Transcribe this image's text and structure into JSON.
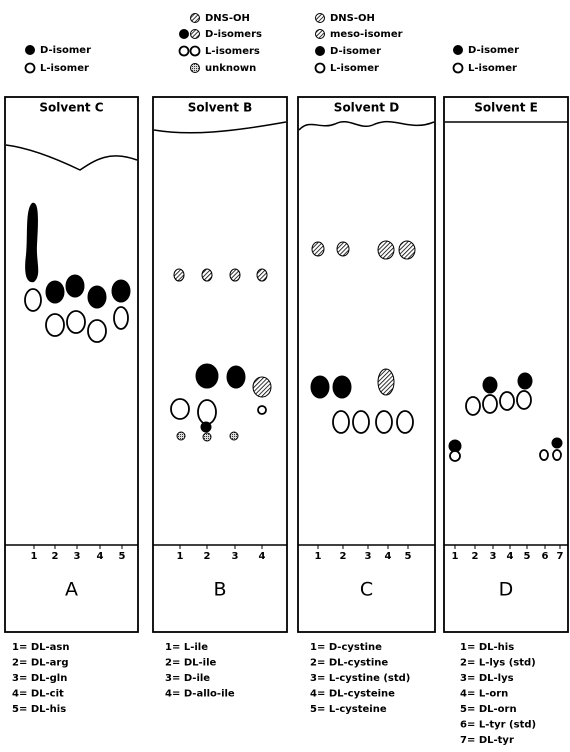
{
  "panels": [
    {
      "legend": [
        "D-isomer",
        "L-isomer"
      ],
      "solvent": "Solvent C",
      "lanes": [
        "1",
        "2",
        "3",
        "4",
        "5"
      ],
      "letter": "A",
      "key": [
        "1= DL-asn",
        "2= DL-arg",
        "3= DL-gln",
        "4= DL-cit",
        "5= DL-his"
      ]
    },
    {
      "legend": [
        "DNS-OH",
        "D-isomers",
        "L-isomers",
        "unknown"
      ],
      "solvent": "Solvent B",
      "lanes": [
        "1",
        "2",
        "3",
        "4"
      ],
      "letter": "B",
      "key": [
        "1= L-ile",
        "2= DL-ile",
        "3= D-ile",
        "4= D-allo-ile"
      ]
    },
    {
      "legend": [
        "DNS-OH",
        "meso-isomer",
        "D-isomer",
        "L-isomer"
      ],
      "solvent": "Solvent D",
      "lanes": [
        "1",
        "2",
        "3",
        "4",
        "5"
      ],
      "letter": "C",
      "key": [
        "1= D-cystine",
        "2= DL-cystine",
        "3= L-cystine (std)",
        "4= DL-cysteine",
        "5= L-cysteine"
      ]
    },
    {
      "legend": [
        "D-isomer",
        "L-isomer"
      ],
      "solvent": "Solvent E",
      "lanes": [
        "1",
        "2",
        "3",
        "4",
        "5",
        "6",
        "7"
      ],
      "letter": "D",
      "key": [
        "1= DL-his",
        "2= L-lys (std)",
        "3= DL-lys",
        "4= L-orn",
        "5= DL-orn",
        "6= L-tyr (std)",
        "7= DL-tyr"
      ]
    }
  ]
}
